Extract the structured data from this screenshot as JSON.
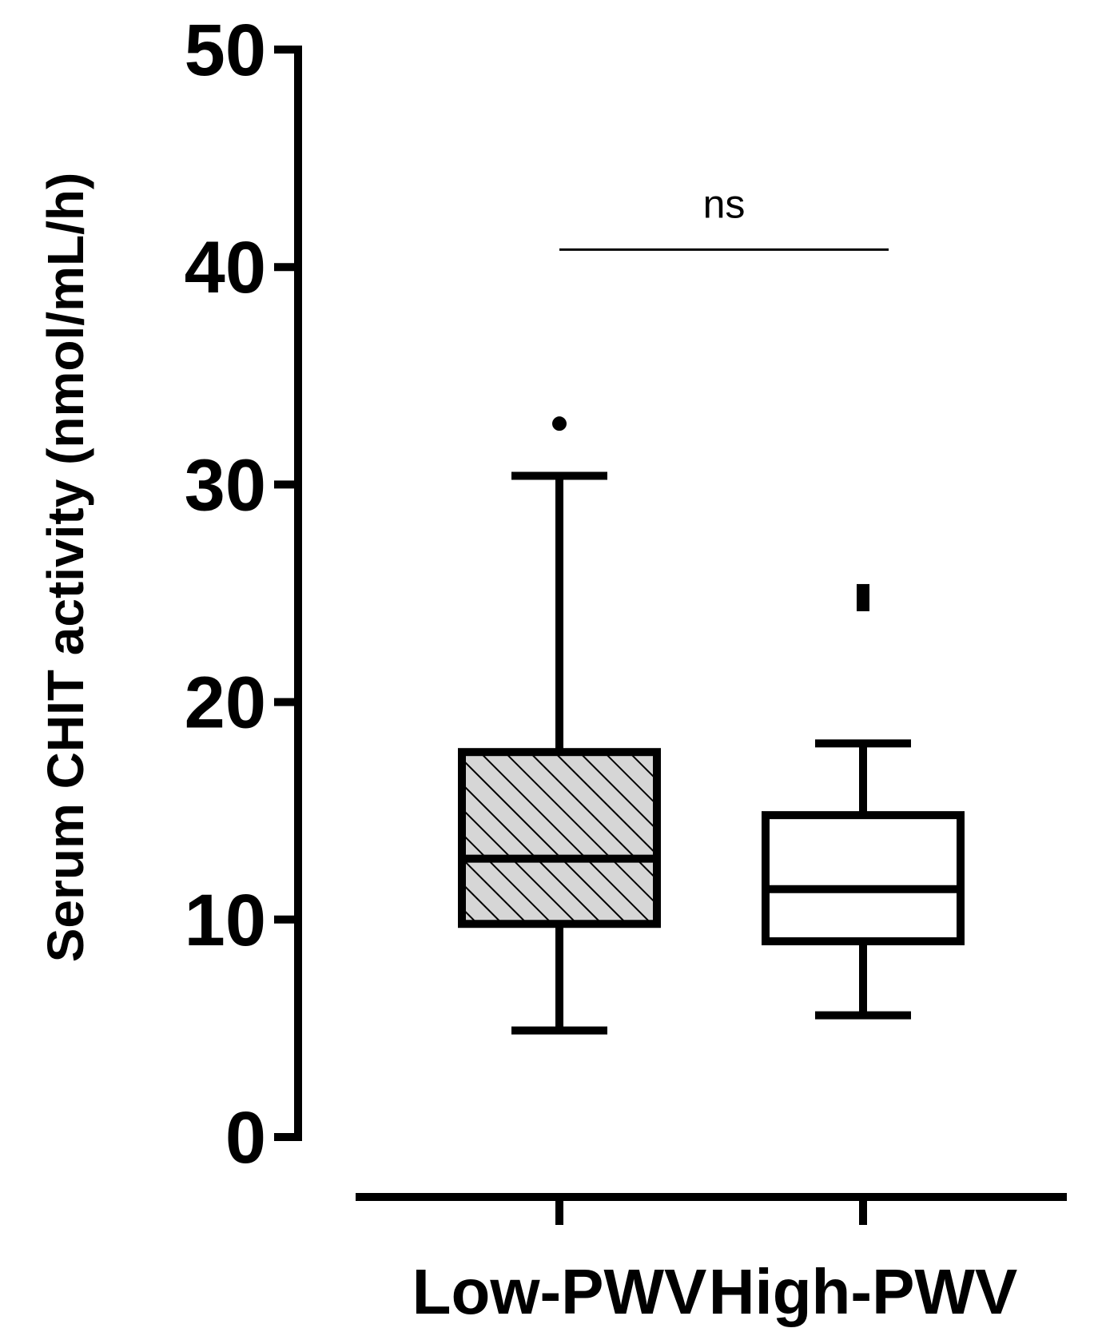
{
  "chart_data": {
    "type": "box",
    "ylabel": "Serum CHIT activity (nmol/mL/h)",
    "xlabel": "",
    "ylim": [
      0,
      50
    ],
    "yticks": [
      0,
      10,
      20,
      30,
      40,
      50
    ],
    "categories": [
      "Low-PWV",
      "High-PWV"
    ],
    "boxes": [
      {
        "category": "Low-PWV",
        "whisker_low": 4.9,
        "q1": 9.8,
        "median": 12.8,
        "q3": 17.7,
        "whisker_high": 30.4,
        "outliers": [
          32.8
        ],
        "fill": "hatched",
        "outlier_marker": "circle"
      },
      {
        "category": "High-PWV",
        "whisker_low": 5.6,
        "q1": 9.0,
        "median": 11.4,
        "q3": 14.8,
        "whisker_high": 18.1,
        "outliers": [
          24.8
        ],
        "fill": "white",
        "outlier_marker": "square"
      }
    ],
    "annotations": [
      {
        "text": "ns",
        "between": [
          "Low-PWV",
          "High-PWV"
        ],
        "y": 40.8
      }
    ],
    "grid": false,
    "legend": "none"
  }
}
